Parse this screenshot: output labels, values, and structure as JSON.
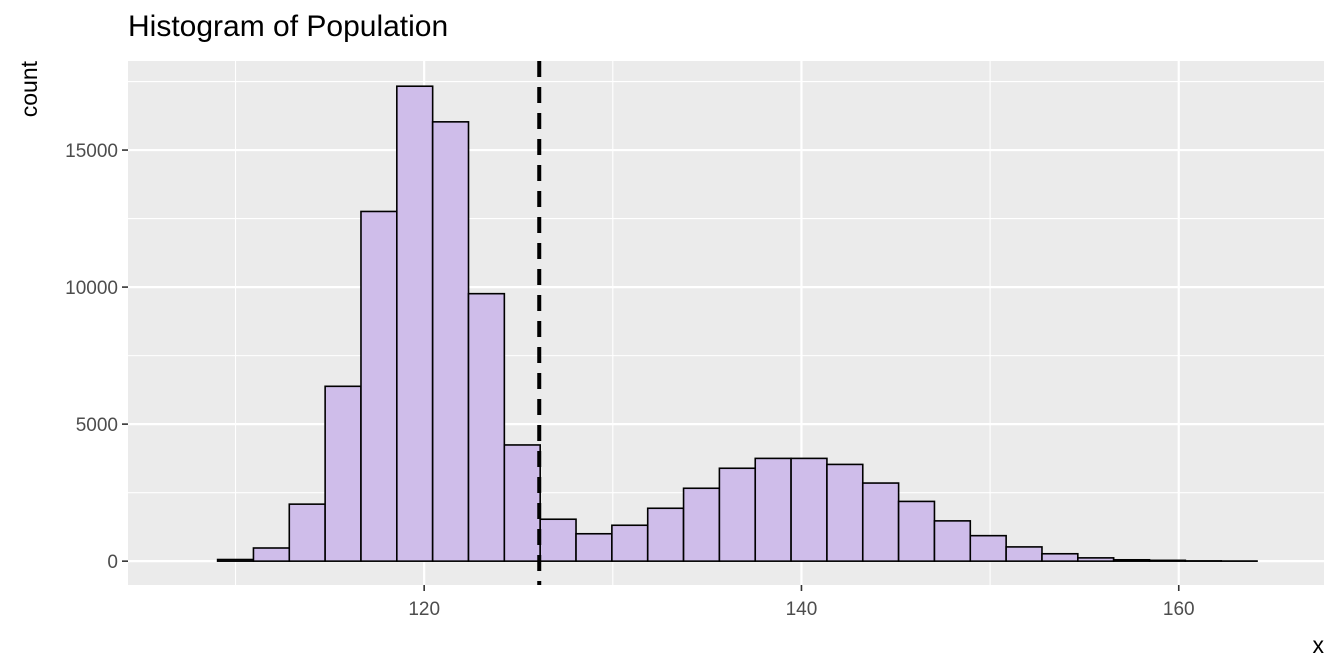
{
  "chart_data": {
    "type": "bar",
    "title": "Histogram of Population",
    "xlabel": "x",
    "ylabel": "count",
    "xlim": [
      104.3,
      167.7
    ],
    "ylim": [
      -870,
      18250
    ],
    "x_ticks": [
      120,
      140,
      160
    ],
    "x_minor_ticks": [
      110,
      130,
      150
    ],
    "y_ticks": [
      0,
      5000,
      10000,
      15000
    ],
    "y_minor_ticks": [
      2500,
      7500,
      12500,
      17500
    ],
    "bin_width": 1.9,
    "bins": [
      {
        "x": 108.1,
        "count": 0
      },
      {
        "x": 110.0,
        "count": 60
      },
      {
        "x": 111.9,
        "count": 480
      },
      {
        "x": 113.8,
        "count": 2080
      },
      {
        "x": 115.7,
        "count": 6380
      },
      {
        "x": 117.6,
        "count": 12760
      },
      {
        "x": 119.5,
        "count": 17330
      },
      {
        "x": 121.4,
        "count": 16030
      },
      {
        "x": 123.3,
        "count": 9760
      },
      {
        "x": 125.2,
        "count": 4240
      },
      {
        "x": 127.1,
        "count": 1530
      },
      {
        "x": 129.0,
        "count": 1000
      },
      {
        "x": 130.9,
        "count": 1310
      },
      {
        "x": 132.8,
        "count": 1930
      },
      {
        "x": 134.7,
        "count": 2660
      },
      {
        "x": 136.6,
        "count": 3390
      },
      {
        "x": 138.5,
        "count": 3750
      },
      {
        "x": 140.4,
        "count": 3750
      },
      {
        "x": 142.3,
        "count": 3530
      },
      {
        "x": 144.2,
        "count": 2850
      },
      {
        "x": 146.1,
        "count": 2180
      },
      {
        "x": 148.0,
        "count": 1470
      },
      {
        "x": 149.9,
        "count": 930
      },
      {
        "x": 151.8,
        "count": 520
      },
      {
        "x": 153.7,
        "count": 270
      },
      {
        "x": 155.6,
        "count": 120
      },
      {
        "x": 157.5,
        "count": 50
      },
      {
        "x": 159.4,
        "count": 30
      },
      {
        "x": 161.3,
        "count": 10
      },
      {
        "x": 163.2,
        "count": 5
      }
    ],
    "vline_x": 126.1,
    "grid": true,
    "colors": {
      "panel_background": "#ebebeb",
      "gridline": "#ffffff",
      "bar_fill": "#cfbdea",
      "bar_outline": "#000000",
      "vline": "#000000",
      "tick_text": "#4d4d4d",
      "tick_mark": "#333333"
    }
  }
}
